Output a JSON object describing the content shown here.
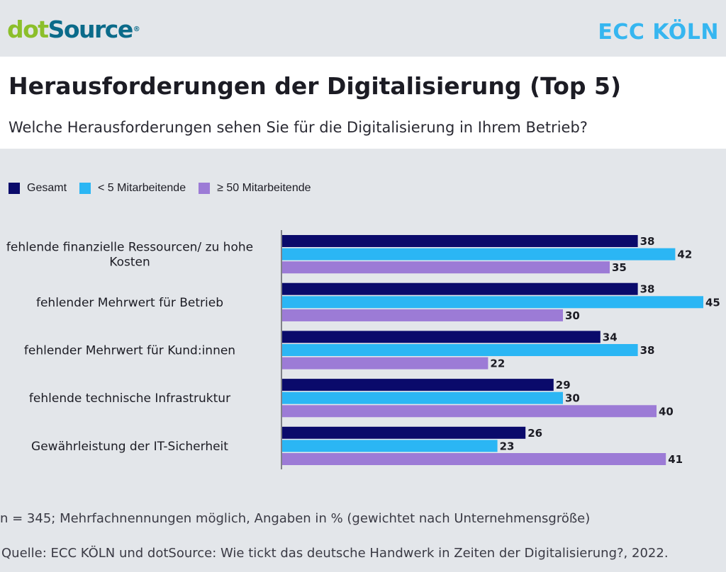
{
  "header": {
    "logo_left": {
      "dot": "dot",
      "source": "Source",
      "reg": "®"
    },
    "logo_right": "ECC KÖLN"
  },
  "title": "Herausforderungen der Digitalisierung (Top 5)",
  "subtitle": "Welche Herausforderungen sehen Sie für die Digitalisierung in Ihrem Betrieb?",
  "chart_data": {
    "type": "bar",
    "orientation": "horizontal",
    "categories": [
      "fehlende finanzielle Ressourcen/ zu hohe Kosten",
      "fehlender Mehrwert für Betrieb",
      "fehlender Mehrwert für Kund:innen",
      "fehlende technische Infrastruktur",
      "Gewährleistung der IT-Sicherheit"
    ],
    "category_lines": [
      [
        "fehlende finanzielle Ressourcen/ zu hohe",
        "Kosten"
      ],
      [
        "fehlender Mehrwert für Betrieb"
      ],
      [
        "fehlender Mehrwert für Kund:innen"
      ],
      [
        "fehlende technische Infrastruktur"
      ],
      [
        "Gewährleistung der IT-Sicherheit"
      ]
    ],
    "series": [
      {
        "name": "Gesamt",
        "color": "#0a0a6b",
        "values": [
          38,
          38,
          34,
          29,
          26
        ]
      },
      {
        "name": "< 5 Mitarbeitende",
        "color": "#2bb6f4",
        "values": [
          42,
          45,
          38,
          30,
          23
        ]
      },
      {
        "name": "≥ 50 Mitarbeitende",
        "color": "#9c7bd6",
        "values": [
          35,
          30,
          22,
          40,
          41
        ]
      }
    ],
    "xlim": [
      0,
      45
    ],
    "grid": false,
    "legend_position": "top-left",
    "data_labels": true
  },
  "footnote": "n = 345; Mehrfachnennungen möglich, Angaben in % (gewichtet nach Unternehmensgröße)",
  "source": "Quelle: ECC KÖLN und dotSource: Wie tickt das deutsche Handwerk in Zeiten der Digitalisierung?, 2022."
}
